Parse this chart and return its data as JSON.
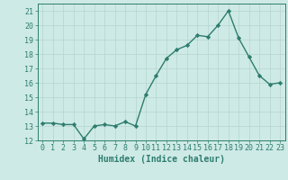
{
  "x": [
    0,
    1,
    2,
    3,
    4,
    5,
    6,
    7,
    8,
    9,
    10,
    11,
    12,
    13,
    14,
    15,
    16,
    17,
    18,
    19,
    20,
    21,
    22,
    23
  ],
  "y": [
    13.2,
    13.2,
    13.1,
    13.1,
    12.1,
    13.0,
    13.1,
    13.0,
    13.3,
    13.0,
    15.2,
    16.5,
    17.7,
    18.3,
    18.6,
    19.3,
    19.2,
    20.0,
    21.0,
    19.1,
    17.8,
    16.5,
    15.9,
    16.0
  ],
  "line_color": "#2d7d6e",
  "marker": "D",
  "marker_size": 2.2,
  "bg_color": "#ceeae6",
  "grid_color": "#b8d8d4",
  "xlabel": "Humidex (Indice chaleur)",
  "ylim": [
    12,
    21.5
  ],
  "xlim": [
    -0.5,
    23.5
  ],
  "yticks": [
    12,
    13,
    14,
    15,
    16,
    17,
    18,
    19,
    20,
    21
  ],
  "xticks": [
    0,
    1,
    2,
    3,
    4,
    5,
    6,
    7,
    8,
    9,
    10,
    11,
    12,
    13,
    14,
    15,
    16,
    17,
    18,
    19,
    20,
    21,
    22,
    23
  ],
  "tick_color": "#2d7d6e",
  "label_color": "#2d7d6e",
  "spine_color": "#2d7d6e",
  "font_size_xlabel": 7,
  "font_size_ticks": 6,
  "line_width": 1.0
}
